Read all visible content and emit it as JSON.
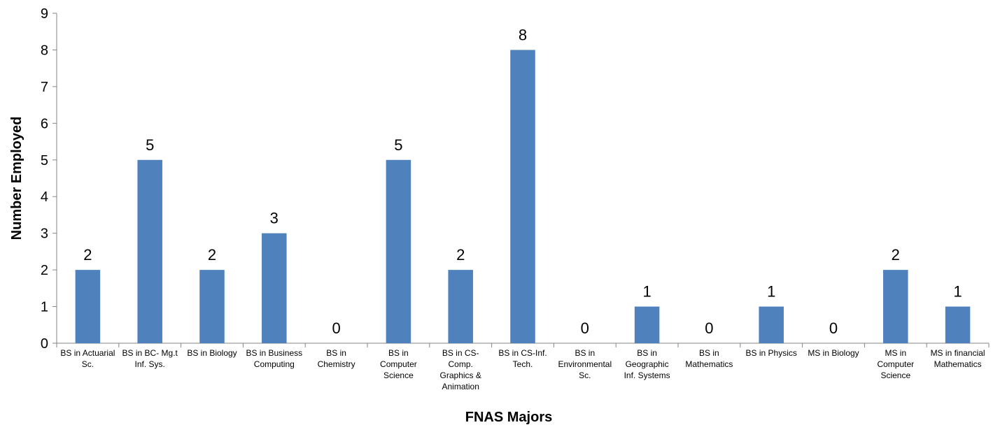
{
  "chart_data": {
    "type": "bar",
    "title": "",
    "xlabel": "FNAS Majors",
    "ylabel": "Number Employed",
    "ylim": [
      0,
      9
    ],
    "yticks": [
      0,
      1,
      2,
      3,
      4,
      5,
      6,
      7,
      8,
      9
    ],
    "grid": false,
    "legend": "none",
    "bar_color": "#4f81bd",
    "data_labels": true,
    "categories": [
      [
        "BS in Actuarial",
        "Sc."
      ],
      [
        "BS in BC- Mg.t",
        "Inf. Sys."
      ],
      [
        "BS in Biology"
      ],
      [
        "BS in Business",
        "Computing"
      ],
      [
        "BS in",
        "Chemistry"
      ],
      [
        "BS in",
        "Computer",
        "Science"
      ],
      [
        "BS in CS-",
        "Comp.",
        "Graphics &",
        "Animation"
      ],
      [
        "BS in CS-Inf.",
        "Tech."
      ],
      [
        "BS in",
        "Environmental",
        "Sc."
      ],
      [
        "BS in",
        "Geographic",
        "Inf. Systems"
      ],
      [
        "BS in",
        "Mathematics"
      ],
      [
        "BS in Physics"
      ],
      [
        "MS in Biology"
      ],
      [
        "MS in",
        "Computer",
        "Science"
      ],
      [
        "MS in financial",
        "Mathematics"
      ]
    ],
    "values": [
      2,
      5,
      2,
      3,
      0,
      5,
      2,
      8,
      0,
      1,
      0,
      1,
      0,
      2,
      1
    ]
  }
}
